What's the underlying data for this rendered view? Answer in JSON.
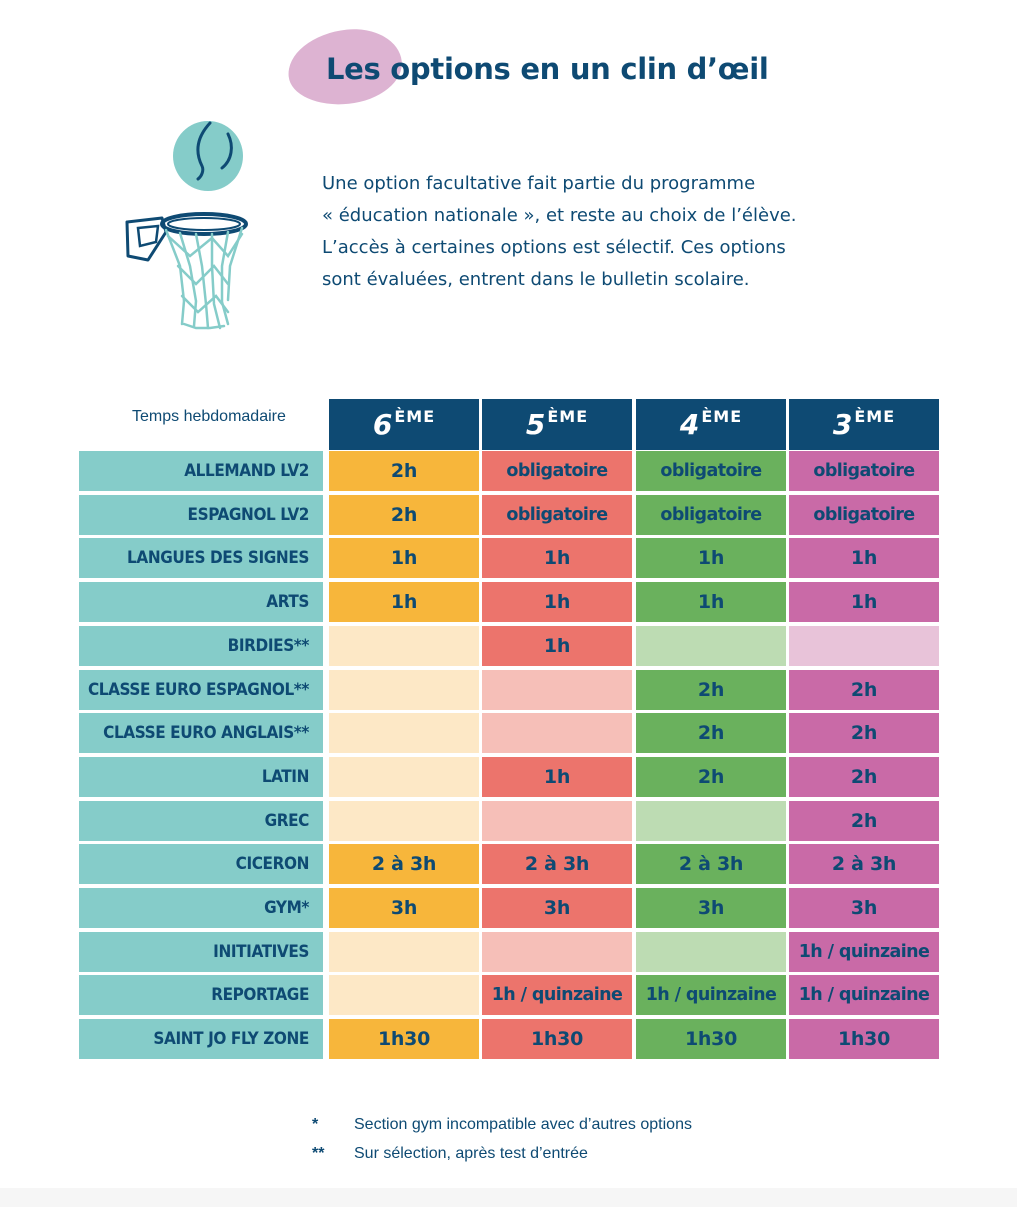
{
  "title": "Les options en un clin d’œil",
  "intro_lines": [
    "Une option facultative fait partie du programme",
    "« éducation nationale », et reste au choix de l’élève.",
    "L’accès à certaines options est sélectif. Ces options",
    "sont évaluées, entrent dans le bulletin scolaire."
  ],
  "table": {
    "corner_label": "Temps hebdomadaire",
    "grades": [
      {
        "num": "6",
        "sup": "ÈME"
      },
      {
        "num": "5",
        "sup": "ÈME"
      },
      {
        "num": "4",
        "sup": "ÈME"
      },
      {
        "num": "3",
        "sup": "ÈME"
      }
    ],
    "colors": {
      "header": "#0e4a73",
      "label_bg": "#85ccc9",
      "columns_full": [
        "#f7b63b",
        "#ec746c",
        "#6ab15d",
        "#c96aa7"
      ],
      "columns_light": [
        "#fde8c6",
        "#f6bfb8",
        "#bddcb3",
        "#e8c3d9"
      ]
    },
    "rows": [
      {
        "label": "ALLEMAND LV2",
        "cells": [
          "2h",
          "obligatoire",
          "obligatoire",
          "obligatoire"
        ]
      },
      {
        "label": "ESPAGNOL LV2",
        "cells": [
          "2h",
          "obligatoire",
          "obligatoire",
          "obligatoire"
        ]
      },
      {
        "label": "LANGUES DES SIGNES",
        "cells": [
          "1h",
          "1h",
          "1h",
          "1h"
        ]
      },
      {
        "label": "ARTS",
        "cells": [
          "1h",
          "1h",
          "1h",
          "1h"
        ]
      },
      {
        "label": "BIRDIES**",
        "cells": [
          "",
          "1h",
          "",
          ""
        ]
      },
      {
        "label": "CLASSE EURO ESPAGNOL**",
        "cells": [
          "",
          "",
          "2h",
          "2h"
        ]
      },
      {
        "label": "CLASSE EURO ANGLAIS**",
        "cells": [
          "",
          "",
          "2h",
          "2h"
        ]
      },
      {
        "label": "LATIN",
        "cells": [
          "",
          "1h",
          "2h",
          "2h"
        ]
      },
      {
        "label": "GREC",
        "cells": [
          "",
          "",
          "",
          "2h"
        ]
      },
      {
        "label": "CICERON",
        "cells": [
          "2 à 3h",
          "2 à 3h",
          "2 à 3h",
          "2 à 3h"
        ]
      },
      {
        "label": "GYM*",
        "cells": [
          "3h",
          "3h",
          "3h",
          "3h"
        ]
      },
      {
        "label": "INITIATIVES",
        "cells": [
          "",
          "",
          "",
          "1h / quinzaine"
        ]
      },
      {
        "label": "REPORTAGE",
        "cells": [
          "",
          "1h / quinzaine",
          "1h / quinzaine",
          "1h / quinzaine"
        ]
      },
      {
        "label": "SAINT JO FLY ZONE",
        "cells": [
          "1h30",
          "1h30",
          "1h30",
          "1h30"
        ]
      }
    ]
  },
  "footnotes": [
    {
      "mark": "*",
      "text": "Section gym incompatible avec d’autres options"
    },
    {
      "mark": "**",
      "text": "Sur sélection, après test d’entrée"
    }
  ],
  "icons": {
    "illustration": "basketball-hoop-icon"
  }
}
